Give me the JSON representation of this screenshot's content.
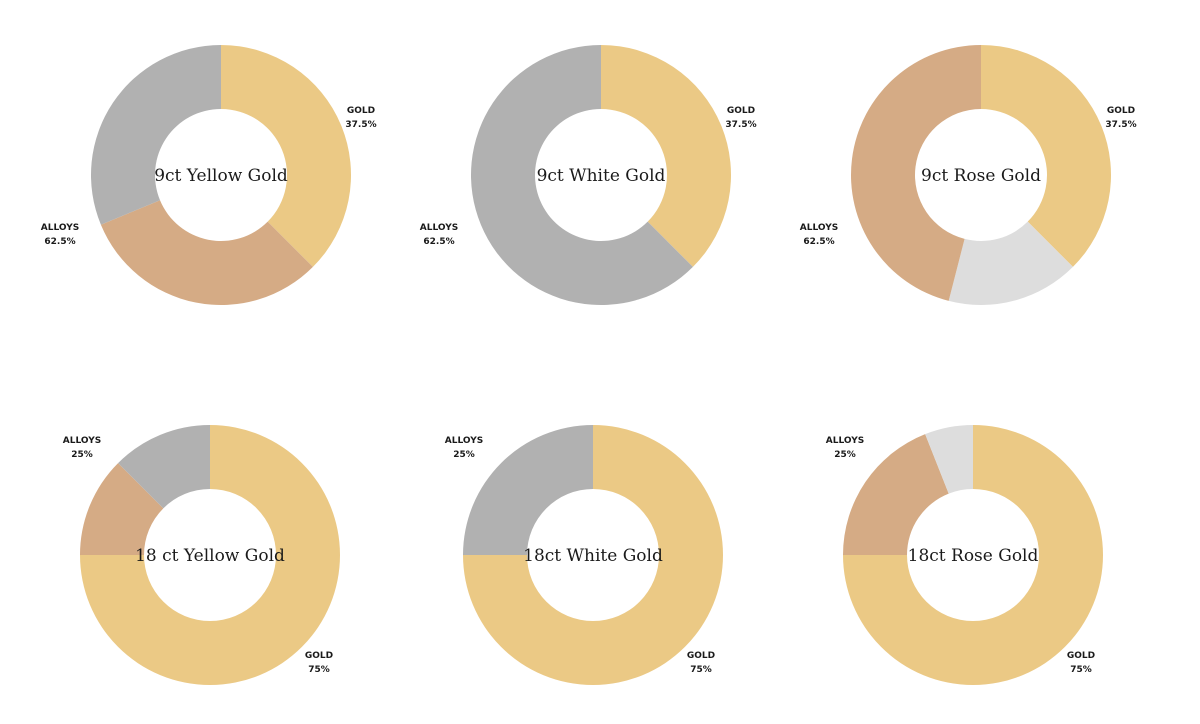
{
  "colors": {
    "gold": "#EBC985",
    "copper": "#D5AB85",
    "silver": "#B1B1B1",
    "light_silver": "#DDDDDD"
  },
  "chart_data": [
    {
      "type": "pie",
      "title": "9ct Yellow Gold",
      "slices": [
        {
          "part": "gold",
          "value": 37.5,
          "color": "#EBC985"
        },
        {
          "part": "alloy_copper",
          "value": 31.25,
          "color": "#D5AB85"
        },
        {
          "part": "alloy_silver",
          "value": 31.25,
          "color": "#B1B1B1"
        }
      ],
      "labels": {
        "gold": "GOLD",
        "gold_pct": "37.5%",
        "alloys": "ALLOYS",
        "alloys_pct": "62.5%"
      }
    },
    {
      "type": "pie",
      "title": "9ct White Gold",
      "slices": [
        {
          "part": "gold",
          "value": 37.5,
          "color": "#EBC985"
        },
        {
          "part": "alloy_silver",
          "value": 62.5,
          "color": "#B1B1B1"
        }
      ],
      "labels": {
        "gold": "GOLD",
        "gold_pct": "37.5%",
        "alloys": "ALLOYS",
        "alloys_pct": "62.5%"
      }
    },
    {
      "type": "pie",
      "title": "9ct Rose Gold",
      "slices": [
        {
          "part": "gold",
          "value": 37.5,
          "color": "#EBC985"
        },
        {
          "part": "alloy_light_silver",
          "value": 16.5,
          "color": "#DDDDDD"
        },
        {
          "part": "alloy_copper",
          "value": 46,
          "color": "#D5AB85"
        }
      ],
      "labels": {
        "gold": "GOLD",
        "gold_pct": "37.5%",
        "alloys": "ALLOYS",
        "alloys_pct": "62.5%"
      }
    },
    {
      "type": "pie",
      "title": "18 ct Yellow Gold",
      "slices": [
        {
          "part": "gold",
          "value": 75,
          "color": "#EBC985"
        },
        {
          "part": "alloy_copper",
          "value": 12.5,
          "color": "#D5AB85"
        },
        {
          "part": "alloy_silver",
          "value": 12.5,
          "color": "#B1B1B1"
        }
      ],
      "labels": {
        "gold": "GOLD",
        "gold_pct": "75%",
        "alloys": "ALLOYS",
        "alloys_pct": "25%"
      }
    },
    {
      "type": "pie",
      "title": "18ct White Gold",
      "slices": [
        {
          "part": "gold",
          "value": 75,
          "color": "#EBC985"
        },
        {
          "part": "alloy_silver",
          "value": 25,
          "color": "#B1B1B1"
        }
      ],
      "labels": {
        "gold": "GOLD",
        "gold_pct": "75%",
        "alloys": "ALLOYS",
        "alloys_pct": "25%"
      }
    },
    {
      "type": "pie",
      "title": "18ct Rose Gold",
      "slices": [
        {
          "part": "gold",
          "value": 75,
          "color": "#EBC985"
        },
        {
          "part": "alloy_copper",
          "value": 19,
          "color": "#D5AB85"
        },
        {
          "part": "alloy_light_silver",
          "value": 6,
          "color": "#DDDDDD"
        }
      ],
      "labels": {
        "gold": "GOLD",
        "gold_pct": "75%",
        "alloys": "ALLOYS",
        "alloys_pct": "25%"
      }
    }
  ]
}
